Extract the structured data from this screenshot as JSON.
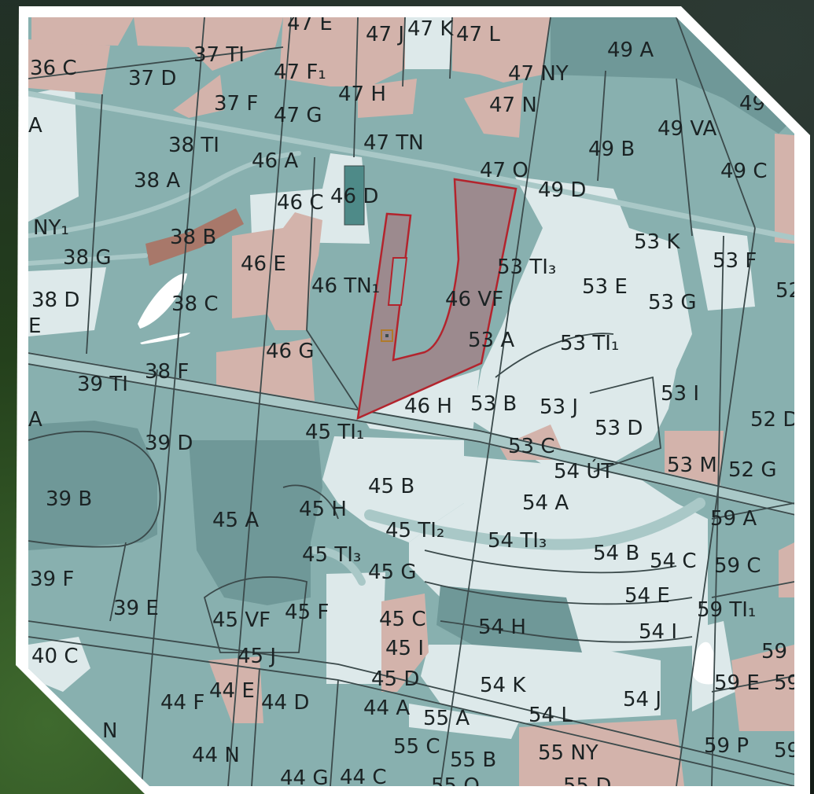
{
  "map": {
    "colors": {
      "forest": "#88b0af",
      "forest_dark": "#6f9898",
      "light": "#dde9ea",
      "pink": "#d3b3ab",
      "brown": "#a8786a",
      "teal": "#4e8a88",
      "road": "#a9c8c7",
      "line": "#3b4a4b",
      "selection_fill": "#9c8a8e",
      "selection_stroke": "#b3242d",
      "marker": "#b07a2a"
    },
    "labels": [
      {
        "id": "47E",
        "text": "47 E"
      },
      {
        "id": "47J",
        "text": "47 J"
      },
      {
        "id": "47K",
        "text": "47 K"
      },
      {
        "id": "47L",
        "text": "47 L"
      },
      {
        "id": "49A",
        "text": "49 A"
      },
      {
        "id": "36C",
        "text": "36 C"
      },
      {
        "id": "37TI",
        "text": "37 TI"
      },
      {
        "id": "37D",
        "text": "37 D"
      },
      {
        "id": "47F1",
        "text": "47 F₁"
      },
      {
        "id": "47NY",
        "text": "47 NY"
      },
      {
        "id": "47H",
        "text": "47 H"
      },
      {
        "id": "47N",
        "text": "47 N"
      },
      {
        "id": "37F",
        "text": "37 F"
      },
      {
        "id": "47G",
        "text": "47 G"
      },
      {
        "id": "49VA",
        "text": "49 VA"
      },
      {
        "id": "A_left",
        "text": "A"
      },
      {
        "id": "38TI",
        "text": "38 TI"
      },
      {
        "id": "47TN",
        "text": "47 TN"
      },
      {
        "id": "49B",
        "text": "49 B"
      },
      {
        "id": "49C",
        "text": "49 C"
      },
      {
        "id": "46A",
        "text": "46 A"
      },
      {
        "id": "38A",
        "text": "38 A"
      },
      {
        "id": "47O",
        "text": "47 O"
      },
      {
        "id": "49D",
        "text": "49 D"
      },
      {
        "id": "46C",
        "text": "46 C"
      },
      {
        "id": "46D",
        "text": "46 D"
      },
      {
        "id": "NY1",
        "text": "NY₁"
      },
      {
        "id": "38B",
        "text": "38 B"
      },
      {
        "id": "53K",
        "text": "53 K"
      },
      {
        "id": "53F",
        "text": "53 F"
      },
      {
        "id": "38G",
        "text": "38 G"
      },
      {
        "id": "46E",
        "text": "46 E"
      },
      {
        "id": "53TI3",
        "text": "53 TI₃"
      },
      {
        "id": "53E",
        "text": "53 E"
      },
      {
        "id": "46TN1",
        "text": "46 TN₁"
      },
      {
        "id": "46VF",
        "text": "46 VF"
      },
      {
        "id": "53G",
        "text": "53 G"
      },
      {
        "id": "38D",
        "text": "38 D"
      },
      {
        "id": "E_left",
        "text": "E"
      },
      {
        "id": "38C",
        "text": "38 C"
      },
      {
        "id": "53A",
        "text": "53 A"
      },
      {
        "id": "53TI1",
        "text": "53 TI₁"
      },
      {
        "id": "46G",
        "text": "46 G"
      },
      {
        "id": "53I",
        "text": "53 I"
      },
      {
        "id": "39TI",
        "text": "39 TI"
      },
      {
        "id": "38F",
        "text": "38 F"
      },
      {
        "id": "A_mid",
        "text": "A"
      },
      {
        "id": "46H",
        "text": "46 H"
      },
      {
        "id": "53B",
        "text": "53 B"
      },
      {
        "id": "53J",
        "text": "53 J"
      },
      {
        "id": "52D",
        "text": "52 D"
      },
      {
        "id": "45TI1",
        "text": "45 TI₁"
      },
      {
        "id": "53D",
        "text": "53 D"
      },
      {
        "id": "39D",
        "text": "39 D"
      },
      {
        "id": "53C",
        "text": "53 C"
      },
      {
        "id": "53M",
        "text": "53 M"
      },
      {
        "id": "52G",
        "text": "52 G"
      },
      {
        "id": "54UT",
        "text": "54 ÚT"
      },
      {
        "id": "45B",
        "text": "45 B"
      },
      {
        "id": "39B",
        "text": "39 B"
      },
      {
        "id": "45H",
        "text": "45 H"
      },
      {
        "id": "54A",
        "text": "54 A"
      },
      {
        "id": "45A",
        "text": "45 A"
      },
      {
        "id": "59A",
        "text": "59 A"
      },
      {
        "id": "45TI2",
        "text": "45 TI₂"
      },
      {
        "id": "54TI3",
        "text": "54 TI₃"
      },
      {
        "id": "54B",
        "text": "54 B"
      },
      {
        "id": "45TI3",
        "text": "45 TI₃"
      },
      {
        "id": "54C",
        "text": "54 C"
      },
      {
        "id": "59C",
        "text": "59 C"
      },
      {
        "id": "39F",
        "text": "39 F"
      },
      {
        "id": "45G",
        "text": "45 G"
      },
      {
        "id": "54E",
        "text": "54 E"
      },
      {
        "id": "39E",
        "text": "39 E"
      },
      {
        "id": "59TI1",
        "text": "59 TI₁"
      },
      {
        "id": "45VF",
        "text": "45 VF"
      },
      {
        "id": "45F",
        "text": "45 F"
      },
      {
        "id": "45C",
        "text": "45 C"
      },
      {
        "id": "54H",
        "text": "54 H"
      },
      {
        "id": "54I",
        "text": "54 I"
      },
      {
        "id": "40C",
        "text": "40 C"
      },
      {
        "id": "45I",
        "text": "45 I"
      },
      {
        "id": "59I",
        "text": "59 I"
      },
      {
        "id": "45J",
        "text": "45 J"
      },
      {
        "id": "45D",
        "text": "45 D"
      },
      {
        "id": "54K",
        "text": "54 K"
      },
      {
        "id": "59E",
        "text": "59 E"
      },
      {
        "id": "59_right",
        "text": "59"
      },
      {
        "id": "44F",
        "text": "44 F"
      },
      {
        "id": "44E",
        "text": "44 E"
      },
      {
        "id": "44D",
        "text": "44 D"
      },
      {
        "id": "44A",
        "text": "44 A"
      },
      {
        "id": "54J",
        "text": "54 J"
      },
      {
        "id": "N_left",
        "text": "N"
      },
      {
        "id": "55A",
        "text": "55 A"
      },
      {
        "id": "54L",
        "text": "54 L"
      },
      {
        "id": "59P",
        "text": "59 P"
      },
      {
        "id": "44N",
        "text": "44 N"
      },
      {
        "id": "55C",
        "text": "55 C"
      },
      {
        "id": "55B",
        "text": "55 B"
      },
      {
        "id": "55NY",
        "text": "55 NY"
      },
      {
        "id": "59_bottom",
        "text": "59"
      },
      {
        "id": "44G",
        "text": "44 G"
      },
      {
        "id": "44C",
        "text": "44 C"
      },
      {
        "id": "55D",
        "text": "55 D"
      },
      {
        "id": "55O",
        "text": "55 O"
      },
      {
        "id": "52_right",
        "text": "52"
      },
      {
        "id": "49_right",
        "text": "49"
      }
    ]
  }
}
